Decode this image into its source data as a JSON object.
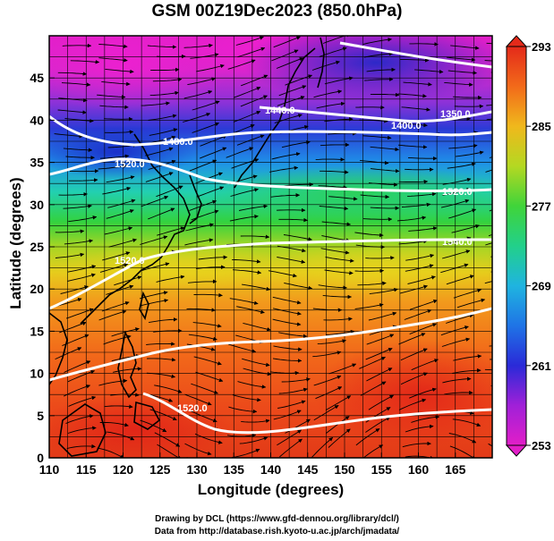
{
  "title": "GSM 00Z19Dec2023 (850.0hPa)",
  "xlabel": "Longitude (degrees)",
  "ylabel": "Latitude (degrees)",
  "credits": [
    "Drawing by DCL (https://www.gfd-dennou.org/library/dcl/)",
    "Data from http://database.rish.kyoto-u.ac.jp/arch/jmadata/"
  ],
  "map": {
    "lon_range": [
      110,
      170
    ],
    "lat_range": [
      0,
      50
    ],
    "lon_ticks": [
      110,
      115,
      120,
      125,
      130,
      135,
      140,
      145,
      150,
      155,
      160,
      165
    ],
    "lat_ticks": [
      0,
      5,
      10,
      15,
      20,
      25,
      30,
      35,
      40,
      45
    ],
    "grid_spacing_deg": 2.5
  },
  "colorbar": {
    "ticks": [
      253,
      261,
      269,
      277,
      285,
      293
    ],
    "range": [
      253,
      293
    ],
    "colors": [
      "#e21ec8",
      "#8a20d6",
      "#2a2ad8",
      "#1f74e6",
      "#1fb4e0",
      "#22d0a0",
      "#2fd24a",
      "#7fd42a",
      "#d4d81c",
      "#f2a81c",
      "#f26a1a",
      "#e42a1a"
    ]
  },
  "contours": {
    "labels": [
      "1350.0",
      "1400.0",
      "1440.0",
      "1480.0",
      "1520.0",
      "1520.0",
      "1540.0",
      "1520.0",
      "1520.0"
    ]
  },
  "colors": {
    "contour": "#ffffff",
    "coast": "#000000",
    "streamline": "#000000"
  }
}
